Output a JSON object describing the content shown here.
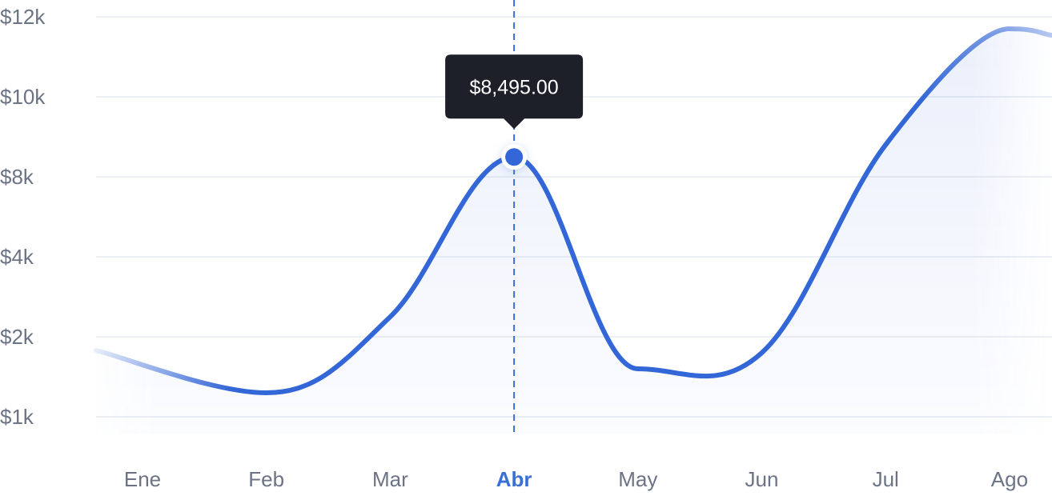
{
  "chart_data": {
    "type": "line",
    "title": "",
    "xlabel": "",
    "ylabel": "",
    "categories": [
      "Ene",
      "Feb",
      "Mar",
      "Abr",
      "May",
      "Jun",
      "Jul",
      "Ago"
    ],
    "y_ticks": [
      "$1k",
      "$2k",
      "$4k",
      "$8k",
      "$10k",
      "$12k"
    ],
    "series": [
      {
        "values": [
          1500,
          1300,
          2500,
          8495,
          1600,
          1800,
          8800,
          11700
        ]
      }
    ],
    "highlight": {
      "category": "Abr",
      "label": "$8,495.00"
    },
    "grid": true,
    "legend": "none",
    "colors": {
      "line": "#3366d6",
      "highlight_label": "#3a6fd8",
      "tooltip_bg": "#1e2029",
      "tick_text": "#6b7385",
      "grid": "#edf0f4"
    }
  }
}
